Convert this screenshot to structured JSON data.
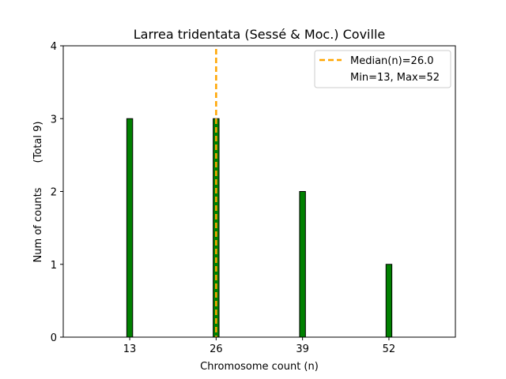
{
  "chart_data": {
    "type": "bar",
    "title": "Larrea tridentata (Sessé & Moc.) Coville",
    "xlabel": "Chromosome count (n)",
    "ylabel": "Num of counts",
    "ylabel_total": "(Total 9)",
    "x": [
      13,
      26,
      39,
      52
    ],
    "values": [
      3,
      3,
      2,
      1
    ],
    "xticks": [
      "13",
      "26",
      "39",
      "52"
    ],
    "yticks": [
      "0",
      "1",
      "2",
      "3",
      "4"
    ],
    "xlim": [
      3,
      62
    ],
    "ylim": [
      0,
      4
    ],
    "grid": false,
    "bar_color": "#008000",
    "bar_edge_color": "#000000",
    "median": {
      "value": 26.0,
      "color": "#FFA500"
    },
    "legend": {
      "position": "top-right",
      "entries": [
        "Median(n)=26.0",
        "Min=13, Max=52"
      ]
    }
  }
}
